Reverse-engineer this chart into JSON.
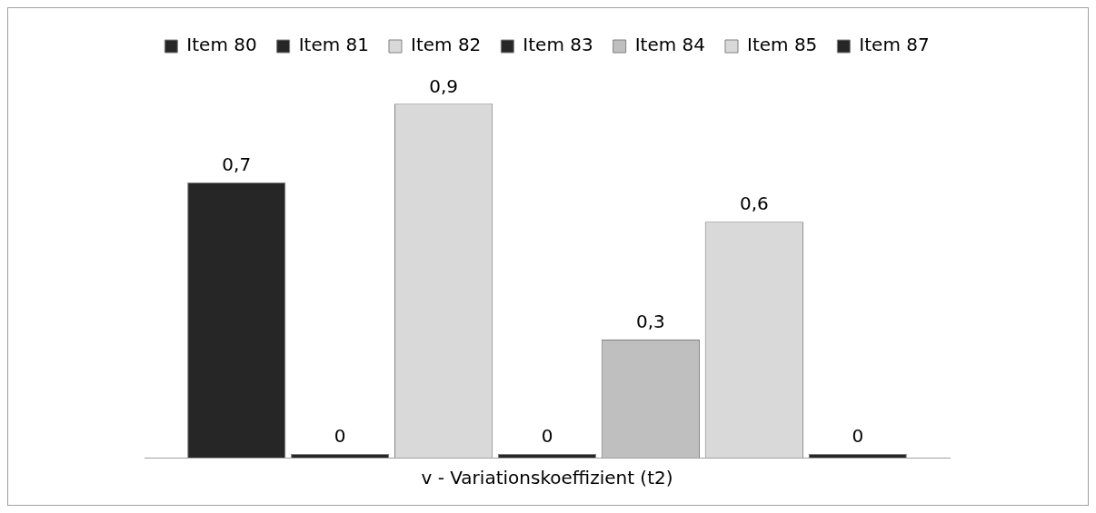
{
  "chart_data": {
    "type": "bar",
    "categories": [
      null
    ],
    "xlabel": "v - Variationskoeffizient (t2)",
    "legend": "top",
    "series": [
      {
        "name": "Item 80",
        "color": "#262626",
        "values": [
          0.7
        ],
        "value_labels": [
          "0,7"
        ]
      },
      {
        "name": "Item 81",
        "color": "#262626",
        "values": [
          0
        ],
        "value_labels": [
          "0"
        ]
      },
      {
        "name": "Item 82",
        "color": "#d9d9d9",
        "values": [
          0.9
        ],
        "value_labels": [
          "0,9"
        ]
      },
      {
        "name": "Item 83",
        "color": "#262626",
        "values": [
          0
        ],
        "value_labels": [
          "0"
        ]
      },
      {
        "name": "Item 84",
        "color": "#bfbfbf",
        "values": [
          0.3
        ],
        "value_labels": [
          "0,3"
        ]
      },
      {
        "name": "Item 85",
        "color": "#d9d9d9",
        "values": [
          0.6
        ],
        "value_labels": [
          "0,6"
        ]
      },
      {
        "name": "Item 87",
        "color": "#262626",
        "values": [
          0
        ],
        "value_labels": [
          "0"
        ]
      }
    ]
  }
}
